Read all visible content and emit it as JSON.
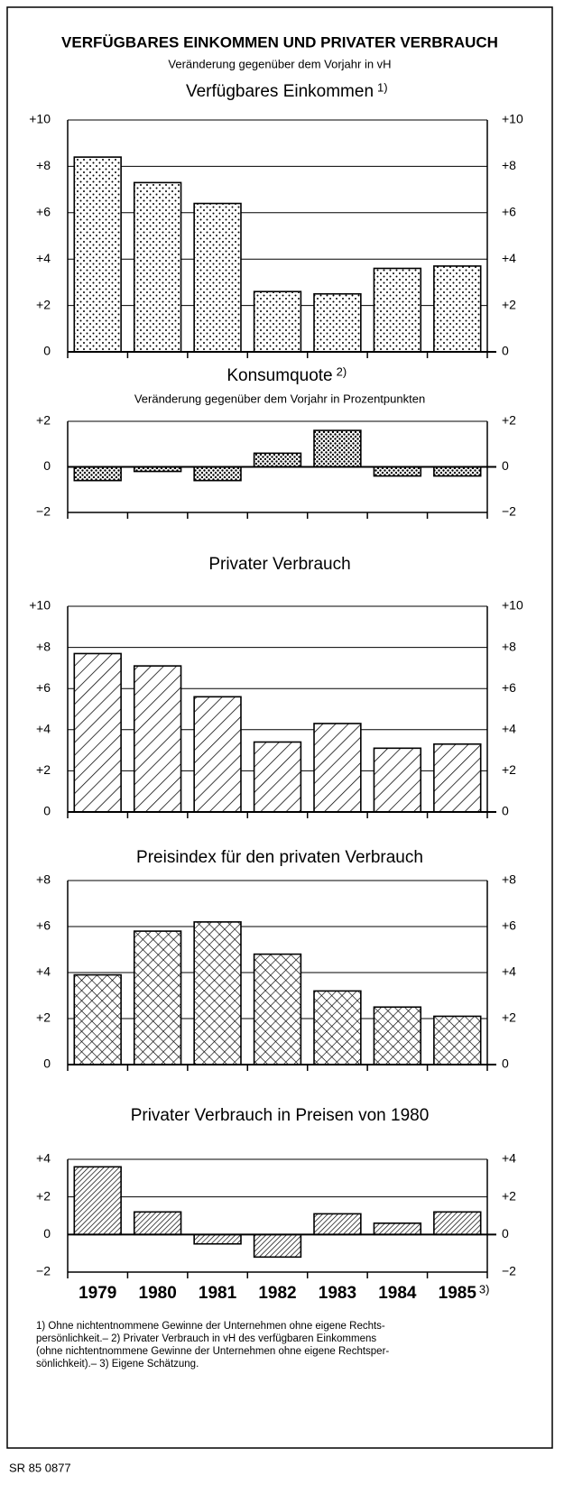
{
  "header": {
    "title": "VERFÜGBARES EINKOMMEN UND PRIVATER VERBRAUCH",
    "subtitle": "Veränderung gegenüber dem Vorjahr in vH"
  },
  "chart_data": [
    {
      "type": "bar",
      "title": "Verfügbares Einkommen",
      "title_note": "1)",
      "pattern": "dots",
      "values": [
        8.4,
        7.3,
        6.4,
        2.6,
        2.5,
        3.6,
        3.7
      ],
      "ylim": [
        0,
        10
      ],
      "yticks": [
        0,
        {
          "value": 2,
          "label": "+2"
        },
        {
          "value": 4,
          "label": "+4"
        },
        {
          "value": 6,
          "label": "+6"
        },
        {
          "value": 8,
          "label": "+8"
        },
        {
          "value": 10,
          "label": "+10"
        }
      ],
      "grid": true
    },
    {
      "type": "bar",
      "title": "Konsumquote",
      "title_note": "2)",
      "subtitle": "Veränderung gegenüber dem Vorjahr in Prozentpunkten",
      "pattern": "dots-dense",
      "values": [
        -0.6,
        -0.2,
        -0.6,
        0.6,
        1.6,
        -0.4,
        -0.4
      ],
      "ylim": [
        -2,
        2
      ],
      "yticks": [
        {
          "value": -2,
          "label": "−2"
        },
        0,
        {
          "value": 2,
          "label": "+2"
        }
      ],
      "grid": true
    },
    {
      "type": "bar",
      "title": "Privater Verbrauch",
      "pattern": "hatch",
      "values": [
        7.7,
        7.1,
        5.6,
        3.4,
        4.3,
        3.1,
        3.3
      ],
      "ylim": [
        0,
        10
      ],
      "yticks": [
        0,
        {
          "value": 2,
          "label": "+2"
        },
        {
          "value": 4,
          "label": "+4"
        },
        {
          "value": 6,
          "label": "+6"
        },
        {
          "value": 8,
          "label": "+8"
        },
        {
          "value": 10,
          "label": "+10"
        }
      ],
      "grid": true
    },
    {
      "type": "bar",
      "title": "Preisindex für den privaten Verbrauch",
      "pattern": "crosshatch",
      "values": [
        3.9,
        5.8,
        6.2,
        4.8,
        3.2,
        2.5,
        2.1
      ],
      "ylim": [
        0,
        8
      ],
      "yticks": [
        0,
        {
          "value": 2,
          "label": "+2"
        },
        {
          "value": 4,
          "label": "+4"
        },
        {
          "value": 6,
          "label": "+6"
        },
        {
          "value": 8,
          "label": "+8"
        }
      ],
      "grid": true
    },
    {
      "type": "bar",
      "title": "Privater Verbrauch in Preisen von 1980",
      "pattern": "hatch-dense",
      "categories": [
        "1979",
        "1980",
        "1981",
        "1982",
        "1983",
        "1984",
        "1985"
      ],
      "category_note": "3)",
      "values": [
        3.6,
        1.2,
        -0.5,
        -1.2,
        1.1,
        0.6,
        1.2
      ],
      "ylim": [
        -2,
        4
      ],
      "yticks": [
        {
          "value": -2,
          "label": "−2"
        },
        0,
        {
          "value": 2,
          "label": "+2"
        },
        {
          "value": 4,
          "label": "+4"
        }
      ],
      "grid": true
    }
  ],
  "footnote_lines": [
    "1) Ohne nichtentnommene Gewinne der Unternehmen ohne eigene Rechts-",
    "persönlichkeit.– 2) Privater Verbrauch in vH des verfügbaren Einkommens",
    "(ohne nichtentnommene Gewinne der Unternehmen ohne eigene Rechtsper-",
    "sönlichkeit).– 3) Eigene Schätzung."
  ],
  "source": "SR 85 0877"
}
